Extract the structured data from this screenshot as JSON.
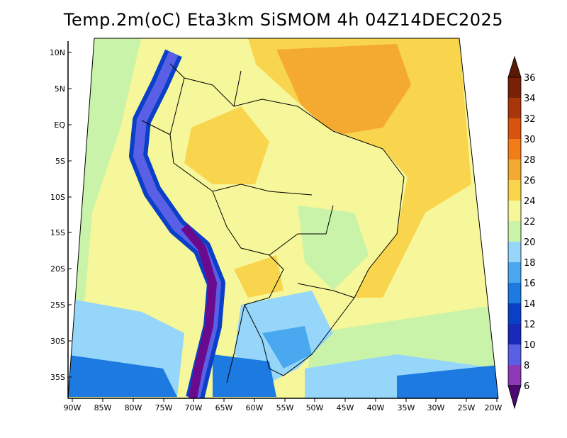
{
  "title": "Temp.2m(oC) Eta3km SiSMOM 4h 04Z14DEC2025",
  "map": {
    "lat_labels": [
      "10N",
      "5N",
      "EQ",
      "5S",
      "10S",
      "15S",
      "20S",
      "25S",
      "30S",
      "35S"
    ],
    "lon_labels": [
      "90W",
      "85W",
      "80W",
      "75W",
      "70W",
      "65W",
      "60W",
      "55W",
      "50W",
      "45W",
      "40W",
      "35W",
      "30W",
      "25W",
      "20W"
    ]
  },
  "colorbar": {
    "labels": [
      "6",
      "8",
      "10",
      "12",
      "14",
      "16",
      "18",
      "20",
      "22",
      "24",
      "26",
      "28",
      "30",
      "32",
      "34",
      "36"
    ],
    "colors": [
      "#6a0a8c",
      "#8e3ab8",
      "#5a60e6",
      "#1a2ab8",
      "#0a40c8",
      "#1c7ae0",
      "#4aa8f0",
      "#96d6fa",
      "#c8f3a8",
      "#f6f69a",
      "#f8d54c",
      "#f4aa30",
      "#f27c18",
      "#d8540e",
      "#a8360a",
      "#7a2006"
    ]
  }
}
